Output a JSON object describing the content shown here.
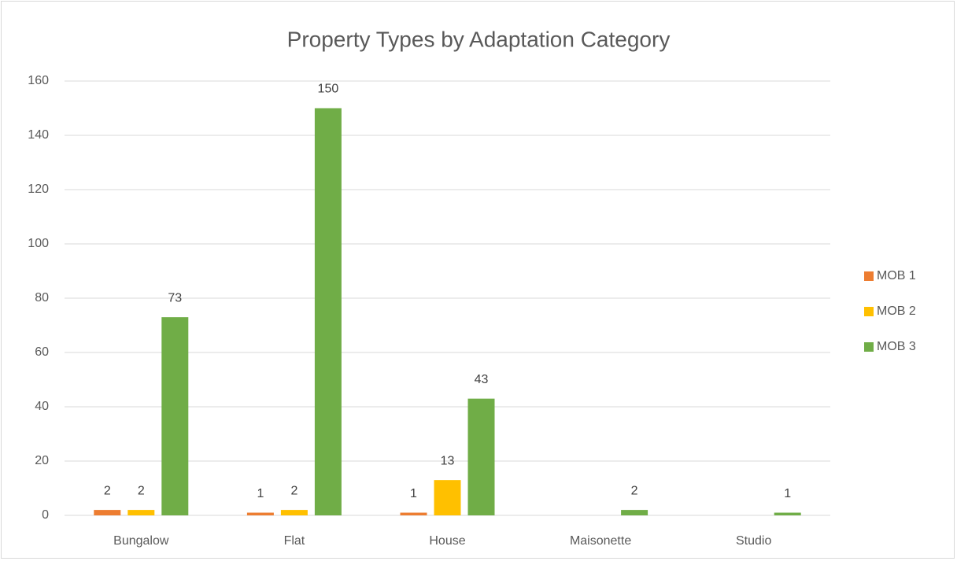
{
  "chart_data": {
    "type": "bar",
    "title": "Property Types by Adaptation Category",
    "categories": [
      "Bungalow",
      "Flat",
      "House",
      "Maisonette",
      "Studio"
    ],
    "series": [
      {
        "name": "MOB 1",
        "color": "#ED7D31",
        "values": [
          2,
          1,
          1,
          null,
          null
        ]
      },
      {
        "name": "MOB 2",
        "color": "#FFC000",
        "values": [
          2,
          2,
          13,
          null,
          null
        ]
      },
      {
        "name": "MOB 3",
        "color": "#70AD47",
        "values": [
          73,
          150,
          43,
          2,
          1
        ]
      }
    ],
    "ylim": [
      0,
      160
    ],
    "yticks": [
      0,
      20,
      40,
      60,
      80,
      100,
      120,
      140,
      160
    ],
    "grid": true,
    "legend": "right",
    "data_labels": true
  }
}
